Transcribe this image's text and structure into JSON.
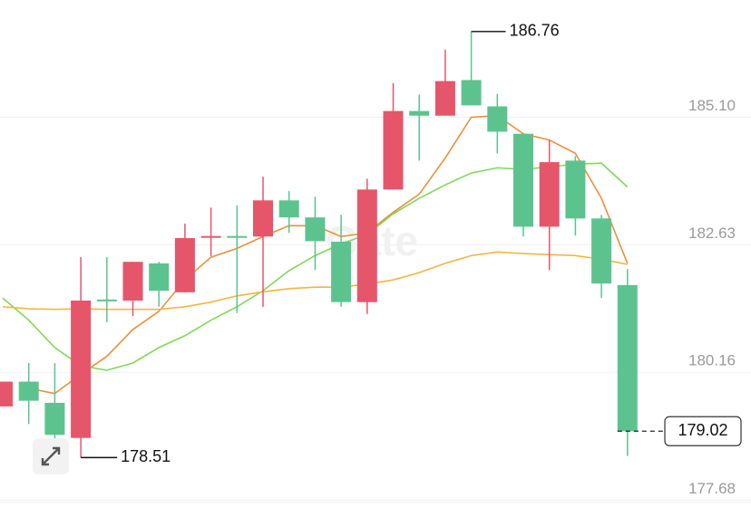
{
  "chart_data": {
    "type": "candlestick",
    "watermark": "Gate",
    "categories": [
      null,
      null,
      null,
      null,
      null,
      null,
      null,
      null,
      null,
      null,
      null,
      null,
      null,
      null,
      null,
      null,
      null,
      null,
      null,
      null,
      null,
      null,
      null,
      null,
      null
    ],
    "open": [
      179.5,
      179.98,
      179.57,
      178.89,
      181.57,
      181.55,
      182.27,
      181.71,
      182.78,
      182.8,
      182.79,
      183.49,
      183.16,
      182.69,
      181.52,
      183.7,
      185.22,
      185.13,
      185.82,
      185.31,
      184.78,
      182.98,
      184.26,
      183.14,
      181.85
    ],
    "high": [
      179.98,
      180.34,
      180.34,
      182.39,
      182.39,
      182.3,
      182.3,
      183.04,
      183.35,
      183.39,
      183.95,
      183.67,
      183.56,
      183.21,
      183.91,
      185.76,
      185.54,
      186.41,
      186.76,
      185.55,
      184.78,
      184.65,
      184.35,
      183.21,
      182.16
    ],
    "low": [
      179.5,
      179.16,
      178.68,
      178.51,
      181.13,
      181.25,
      181.43,
      181.71,
      182.41,
      181.31,
      181.43,
      182.86,
      182.14,
      181.43,
      181.29,
      183.7,
      184.26,
      185.13,
      185.33,
      184.4,
      182.79,
      182.14,
      182.81,
      181.6,
      178.54
    ],
    "close": [
      179.98,
      179.61,
      178.95,
      181.55,
      181.55,
      182.3,
      181.74,
      182.76,
      182.8,
      182.78,
      183.49,
      183.16,
      182.7,
      181.52,
      183.7,
      185.22,
      185.13,
      185.8,
      185.33,
      184.82,
      182.98,
      184.23,
      183.14,
      181.88,
      179.02
    ],
    "up_color": "#e5566a",
    "down_color": "#5cc38f",
    "lines": [
      {
        "color": "#e8913c",
        "values": [
          null,
          179.85,
          179.75,
          180.12,
          180.47,
          180.99,
          181.34,
          181.95,
          182.39,
          182.56,
          182.79,
          183.0,
          183.0,
          182.79,
          182.86,
          183.26,
          183.61,
          184.31,
          185.1,
          185.13,
          184.78,
          184.66,
          184.4,
          183.53,
          182.27
        ]
      },
      {
        "color": "#7fd85a",
        "values": [
          181.6,
          181.17,
          180.64,
          180.29,
          180.2,
          180.34,
          180.64,
          180.87,
          181.17,
          181.43,
          181.74,
          182.13,
          182.42,
          182.65,
          182.83,
          183.23,
          183.53,
          183.79,
          184.02,
          184.12,
          184.09,
          184.14,
          184.19,
          184.21,
          183.75
        ]
      },
      {
        "color": "#f2b544",
        "values": [
          181.43,
          181.39,
          181.38,
          181.39,
          181.38,
          181.38,
          181.38,
          181.43,
          181.52,
          181.64,
          181.72,
          181.78,
          181.81,
          181.81,
          181.87,
          181.95,
          182.09,
          182.27,
          182.42,
          182.49,
          182.46,
          182.44,
          182.42,
          182.35,
          182.25
        ]
      }
    ],
    "ylim": [
      177.64,
      187.37
    ],
    "yticks": [
      {
        "value": 185.1,
        "label": "185.10"
      },
      182.63,
      180.16,
      177.68
    ],
    "grid": true,
    "high_label": 186.76,
    "low_label": 178.51,
    "last_price": 179.02
  }
}
